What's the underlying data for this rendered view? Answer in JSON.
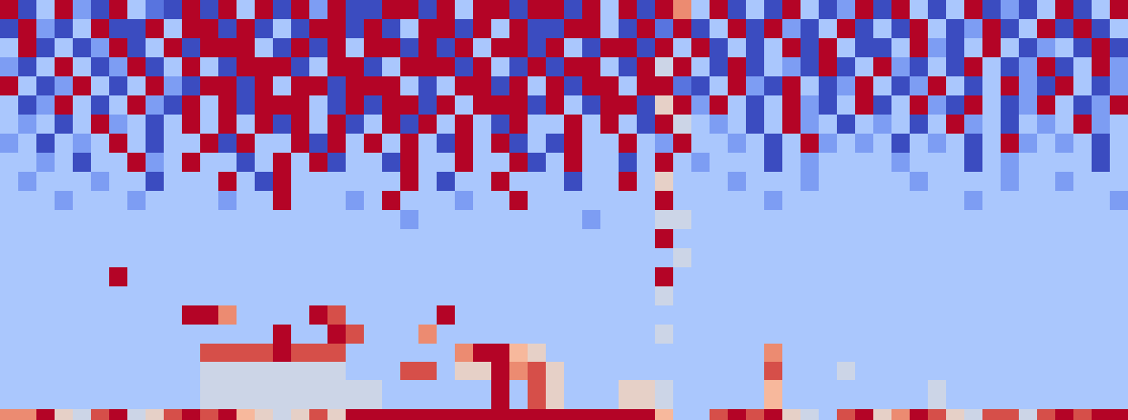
{
  "chart_data": {
    "type": "heatmap",
    "tick_labels": false,
    "xlim": [
      0,
      1240
    ],
    "ylim": [
      462,
      0
    ],
    "color_range": [
      0,
      9
    ],
    "cells": {
      "x_edges": [
        0,
        20,
        40,
        60,
        80,
        100,
        120,
        140,
        160,
        180,
        200,
        220,
        240,
        260,
        280,
        300,
        320,
        340,
        360,
        380,
        400,
        420,
        440,
        460,
        480,
        500,
        520,
        540,
        560,
        580,
        600,
        620,
        640,
        660,
        680,
        700,
        720,
        740,
        760,
        780,
        800,
        820,
        840,
        860,
        880,
        900,
        920,
        940,
        960,
        980,
        1000,
        1020,
        1040,
        1060,
        1080,
        1100,
        1120,
        1140,
        1160,
        1180,
        1200,
        1220,
        1240
      ],
      "y_edges": [
        0,
        21,
        42,
        63,
        84,
        105,
        126,
        147,
        168,
        189,
        210,
        231,
        252,
        273,
        294,
        315,
        336,
        357,
        378,
        398,
        418,
        450,
        462
      ],
      "values": [
        [
          9,
          0,
          3,
          9,
          2,
          0,
          9,
          3,
          1,
          0,
          9,
          0,
          9,
          3,
          9,
          0,
          9,
          2,
          9,
          0,
          0,
          9,
          9,
          0,
          9,
          3,
          9,
          9,
          0,
          9,
          9,
          0,
          9,
          3,
          9,
          0,
          9,
          7,
          3,
          9,
          0,
          3,
          0,
          9,
          3,
          0,
          2,
          9,
          0,
          9,
          3,
          0,
          3,
          9,
          0,
          2,
          0,
          3,
          9,
          0,
          3,
          9
        ],
        [
          0,
          9,
          2,
          0,
          3,
          9,
          0,
          0,
          9,
          3,
          9,
          9,
          0,
          9,
          0,
          3,
          0,
          9,
          9,
          0,
          9,
          0,
          3,
          9,
          9,
          0,
          9,
          3,
          9,
          0,
          0,
          9,
          9,
          3,
          0,
          9,
          1,
          9,
          0,
          3,
          9,
          0,
          9,
          2,
          0,
          3,
          9,
          0,
          3,
          0,
          9,
          3,
          0,
          2,
          9,
          0,
          3,
          9,
          0,
          9,
          0,
          3
        ],
        [
          3,
          9,
          0,
          3,
          0,
          2,
          9,
          0,
          3,
          9,
          0,
          9,
          9,
          9,
          3,
          0,
          9,
          0,
          9,
          3,
          9,
          9,
          0,
          9,
          0,
          9,
          3,
          9,
          9,
          0,
          9,
          3,
          0,
          9,
          9,
          0,
          9,
          3,
          9,
          0,
          3,
          0,
          3,
          9,
          0,
          9,
          3,
          0,
          0,
          3,
          9,
          2,
          0,
          3,
          9,
          3,
          0,
          2,
          3,
          0,
          9,
          0
        ],
        [
          2,
          0,
          3,
          9,
          3,
          0,
          2,
          9,
          0,
          3,
          9,
          3,
          0,
          9,
          9,
          9,
          0,
          3,
          9,
          9,
          0,
          3,
          9,
          9,
          9,
          0,
          9,
          3,
          0,
          9,
          0,
          9,
          9,
          3,
          0,
          9,
          4,
          9,
          3,
          0,
          9,
          0,
          3,
          2,
          0,
          9,
          0,
          3,
          9,
          2,
          0,
          3,
          0,
          9,
          3,
          0,
          2,
          9,
          0,
          3,
          9,
          2
        ],
        [
          9,
          3,
          0,
          2,
          9,
          3,
          0,
          3,
          9,
          2,
          0,
          9,
          9,
          0,
          9,
          3,
          9,
          9,
          0,
          9,
          9,
          9,
          3,
          0,
          3,
          9,
          9,
          0,
          9,
          3,
          9,
          0,
          9,
          9,
          3,
          9,
          9,
          1,
          0,
          3,
          9,
          2,
          0,
          9,
          3,
          0,
          2,
          9,
          3,
          0,
          2,
          9,
          3,
          0,
          3,
          9,
          2,
          0,
          9,
          3,
          0,
          2
        ],
        [
          3,
          0,
          2,
          9,
          3,
          0,
          3,
          9,
          2,
          0,
          9,
          3,
          9,
          0,
          9,
          9,
          9,
          3,
          0,
          9,
          0,
          9,
          9,
          0,
          9,
          3,
          9,
          9,
          9,
          0,
          9,
          3,
          0,
          9,
          9,
          0,
          5,
          9,
          2,
          9,
          3,
          0,
          3,
          9,
          2,
          0,
          3,
          9,
          0,
          3,
          9,
          2,
          0,
          9,
          3,
          0,
          2,
          9,
          3,
          0,
          2,
          9
        ],
        [
          3,
          2,
          3,
          0,
          3,
          9,
          2,
          3,
          0,
          3,
          9,
          3,
          9,
          3,
          9,
          0,
          9,
          3,
          9,
          0,
          3,
          9,
          0,
          9,
          3,
          9,
          3,
          0,
          9,
          3,
          3,
          9,
          3,
          9,
          3,
          0,
          9,
          4,
          3,
          2,
          3,
          0,
          3,
          9,
          2,
          3,
          0,
          3,
          2,
          3,
          0,
          3,
          9,
          2,
          3,
          0,
          3,
          2,
          3,
          9,
          2,
          3
        ],
        [
          2,
          3,
          0,
          3,
          2,
          3,
          9,
          3,
          0,
          3,
          3,
          9,
          0,
          9,
          3,
          3,
          9,
          0,
          9,
          3,
          9,
          3,
          9,
          3,
          0,
          9,
          3,
          9,
          0,
          3,
          0,
          9,
          3,
          3,
          9,
          3,
          2,
          9,
          3,
          3,
          2,
          3,
          0,
          3,
          9,
          2,
          3,
          2,
          3,
          0,
          3,
          2,
          3,
          0,
          3,
          9,
          2,
          3,
          2,
          3,
          0,
          3
        ],
        [
          3,
          3,
          2,
          3,
          0,
          3,
          3,
          9,
          2,
          3,
          9,
          3,
          3,
          0,
          3,
          9,
          3,
          9,
          0,
          3,
          3,
          0,
          9,
          3,
          3,
          9,
          3,
          3,
          9,
          0,
          3,
          9,
          3,
          3,
          0,
          3,
          9,
          3,
          2,
          3,
          3,
          3,
          0,
          3,
          2,
          3,
          3,
          3,
          3,
          2,
          3,
          3,
          3,
          0,
          3,
          2,
          3,
          3,
          3,
          3,
          0,
          3
        ],
        [
          3,
          2,
          3,
          3,
          3,
          2,
          3,
          3,
          0,
          3,
          3,
          3,
          9,
          3,
          0,
          9,
          3,
          3,
          3,
          3,
          3,
          3,
          9,
          3,
          0,
          3,
          3,
          9,
          3,
          3,
          3,
          0,
          3,
          3,
          9,
          3,
          5,
          3,
          3,
          3,
          2,
          3,
          3,
          3,
          2,
          3,
          3,
          3,
          3,
          3,
          2,
          3,
          3,
          3,
          3,
          2,
          3,
          3,
          2,
          3,
          3,
          3
        ],
        [
          3,
          3,
          3,
          2,
          3,
          3,
          3,
          2,
          3,
          3,
          3,
          3,
          2,
          3,
          3,
          9,
          3,
          3,
          3,
          2,
          3,
          9,
          3,
          3,
          3,
          2,
          3,
          3,
          9,
          3,
          3,
          3,
          3,
          3,
          3,
          3,
          9,
          3,
          3,
          3,
          3,
          3,
          2,
          3,
          3,
          3,
          3,
          3,
          3,
          3,
          3,
          3,
          3,
          2,
          3,
          3,
          3,
          3,
          3,
          3,
          3,
          2
        ],
        [
          3,
          3,
          3,
          3,
          3,
          3,
          3,
          3,
          3,
          3,
          3,
          3,
          3,
          3,
          3,
          3,
          3,
          3,
          3,
          3,
          3,
          3,
          2,
          3,
          3,
          3,
          3,
          3,
          3,
          3,
          3,
          3,
          2,
          3,
          3,
          3,
          4,
          4,
          3,
          3,
          3,
          3,
          3,
          3,
          3,
          3,
          3,
          3,
          3,
          3,
          3,
          3,
          3,
          3,
          3,
          3,
          3,
          3,
          3,
          3,
          3,
          3
        ],
        [
          3,
          3,
          3,
          3,
          3,
          3,
          3,
          3,
          3,
          3,
          3,
          3,
          3,
          3,
          3,
          3,
          3,
          3,
          3,
          3,
          3,
          3,
          3,
          3,
          3,
          3,
          3,
          3,
          3,
          3,
          3,
          3,
          3,
          3,
          3,
          3,
          9,
          3,
          3,
          3,
          3,
          3,
          3,
          3,
          3,
          3,
          3,
          3,
          3,
          3,
          3,
          3,
          3,
          3,
          3,
          3,
          3,
          3,
          3,
          3,
          3,
          3
        ],
        [
          3,
          3,
          3,
          3,
          3,
          3,
          3,
          3,
          3,
          3,
          3,
          3,
          3,
          3,
          3,
          3,
          3,
          3,
          3,
          3,
          3,
          3,
          3,
          3,
          3,
          3,
          3,
          3,
          3,
          3,
          3,
          3,
          3,
          3,
          3,
          3,
          3,
          4,
          3,
          3,
          3,
          3,
          3,
          3,
          3,
          3,
          3,
          3,
          3,
          3,
          3,
          3,
          3,
          3,
          3,
          3,
          3,
          3,
          3,
          3,
          3,
          3
        ],
        [
          3,
          3,
          3,
          3,
          3,
          3,
          9,
          3,
          3,
          3,
          3,
          3,
          3,
          3,
          3,
          3,
          3,
          3,
          3,
          3,
          3,
          3,
          3,
          3,
          3,
          3,
          3,
          3,
          3,
          3,
          3,
          3,
          3,
          3,
          3,
          3,
          9,
          3,
          3,
          3,
          3,
          3,
          3,
          3,
          3,
          3,
          3,
          3,
          3,
          3,
          3,
          3,
          3,
          3,
          3,
          3,
          3,
          3,
          3,
          3,
          3,
          3
        ],
        [
          3,
          3,
          3,
          3,
          3,
          3,
          3,
          3,
          3,
          3,
          3,
          3,
          3,
          3,
          3,
          3,
          3,
          3,
          3,
          3,
          3,
          3,
          3,
          3,
          3,
          3,
          3,
          3,
          3,
          3,
          3,
          3,
          3,
          3,
          3,
          3,
          4,
          3,
          3,
          3,
          3,
          3,
          3,
          3,
          3,
          3,
          3,
          3,
          3,
          3,
          3,
          3,
          3,
          3,
          3,
          3,
          3,
          3,
          3,
          3,
          3,
          3
        ],
        [
          3,
          3,
          3,
          3,
          3,
          3,
          3,
          3,
          3,
          3,
          9,
          9,
          7,
          3,
          3,
          3,
          3,
          9,
          8,
          3,
          3,
          3,
          3,
          3,
          9,
          3,
          3,
          3,
          3,
          3,
          3,
          3,
          3,
          3,
          3,
          3,
          3,
          3,
          3,
          3,
          3,
          3,
          3,
          3,
          3,
          3,
          3,
          3,
          3,
          3,
          3,
          3,
          3,
          3,
          3,
          3,
          3,
          3,
          3,
          3,
          3,
          3
        ],
        [
          3,
          3,
          3,
          3,
          3,
          3,
          3,
          3,
          3,
          3,
          3,
          3,
          3,
          3,
          3,
          9,
          3,
          3,
          9,
          8,
          3,
          3,
          3,
          7,
          3,
          3,
          3,
          3,
          3,
          3,
          3,
          3,
          3,
          3,
          3,
          3,
          4,
          3,
          3,
          3,
          3,
          3,
          3,
          3,
          3,
          3,
          3,
          3,
          3,
          3,
          3,
          3,
          3,
          3,
          3,
          3,
          3,
          3,
          3,
          3,
          3,
          3
        ],
        [
          3,
          3,
          3,
          3,
          3,
          3,
          3,
          3,
          3,
          3,
          3,
          8,
          8,
          8,
          8,
          9,
          8,
          8,
          8,
          3,
          3,
          3,
          3,
          3,
          3,
          7,
          9,
          9,
          6,
          5,
          3,
          3,
          3,
          3,
          3,
          3,
          3,
          3,
          3,
          3,
          3,
          3,
          7,
          3,
          3,
          3,
          3,
          3,
          3,
          3,
          3,
          3,
          3,
          3,
          3,
          3,
          3,
          3,
          3,
          3,
          3,
          3
        ],
        [
          3,
          3,
          3,
          3,
          3,
          3,
          3,
          3,
          3,
          3,
          3,
          4,
          4,
          4,
          4,
          4,
          4,
          4,
          4,
          3,
          3,
          3,
          8,
          8,
          3,
          5,
          5,
          9,
          7,
          8,
          5,
          3,
          3,
          3,
          3,
          3,
          3,
          3,
          3,
          3,
          3,
          3,
          8,
          3,
          3,
          3,
          4,
          3,
          3,
          3,
          3,
          3,
          3,
          3,
          3,
          3,
          3,
          3,
          3,
          3,
          3,
          3
        ],
        [
          3,
          3,
          3,
          3,
          3,
          3,
          3,
          3,
          3,
          3,
          3,
          4,
          4,
          4,
          4,
          4,
          4,
          4,
          4,
          4,
          4,
          3,
          3,
          3,
          3,
          3,
          3,
          9,
          3,
          8,
          5,
          3,
          3,
          3,
          5,
          5,
          4,
          3,
          3,
          3,
          3,
          3,
          6,
          3,
          3,
          3,
          3,
          3,
          3,
          3,
          3,
          4,
          3,
          3,
          3,
          3,
          3,
          3,
          3,
          3,
          3,
          3
        ],
        [
          7,
          7,
          9,
          5,
          4,
          8,
          9,
          4,
          5,
          8,
          9,
          8,
          9,
          6,
          5,
          4,
          5,
          8,
          5,
          9,
          9,
          9,
          9,
          9,
          9,
          9,
          9,
          9,
          9,
          9,
          9,
          9,
          9,
          9,
          9,
          9,
          6,
          3,
          3,
          8,
          9,
          8,
          9,
          5,
          4,
          3,
          8,
          9,
          5,
          7,
          9,
          8,
          5,
          4,
          8,
          8,
          4,
          8,
          9,
          8,
          9,
          9
        ]
      ]
    }
  }
}
